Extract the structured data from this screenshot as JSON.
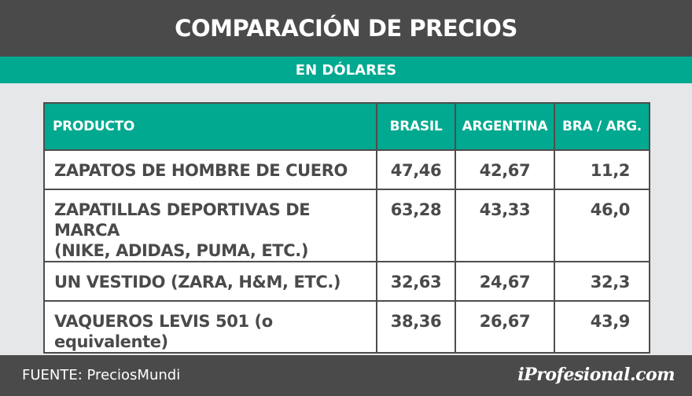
{
  "header": {
    "title": "COMPARACIÓN DE PRECIOS",
    "subtitle": "EN DÓLARES"
  },
  "chart_data": {
    "type": "table",
    "columns": [
      "PRODUCTO",
      "BRASIL",
      "ARGENTINA",
      "BRA / ARG."
    ],
    "rows": [
      {
        "product_lines": [
          "ZAPATOS DE HOMBRE DE CUERO"
        ],
        "brasil": "47,46",
        "argentina": "42,67",
        "ratio": "11,2"
      },
      {
        "product_lines": [
          "ZAPATILLAS DEPORTIVAS DE MARCA",
          "(NIKE, ADIDAS, PUMA, ETC.)"
        ],
        "brasil": "63,28",
        "argentina": "43,33",
        "ratio": "46,0"
      },
      {
        "product_lines": [
          "UN VESTIDO (ZARA, H&M, ETC.)"
        ],
        "brasil": "32,63",
        "argentina": "24,67",
        "ratio": "32,3"
      },
      {
        "product_lines": [
          "VAQUEROS LEVIS 501 (o equivalente)"
        ],
        "brasil": "38,36",
        "argentina": "26,67",
        "ratio": "43,9"
      }
    ]
  },
  "footer": {
    "source": "FUENTE: PreciosMundi",
    "brand": "iProfesional.com"
  },
  "colors": {
    "header_bg": "#4a4a4a",
    "accent": "#00a98f",
    "background": "#e6e7e8",
    "text": "#4a4a4a"
  }
}
